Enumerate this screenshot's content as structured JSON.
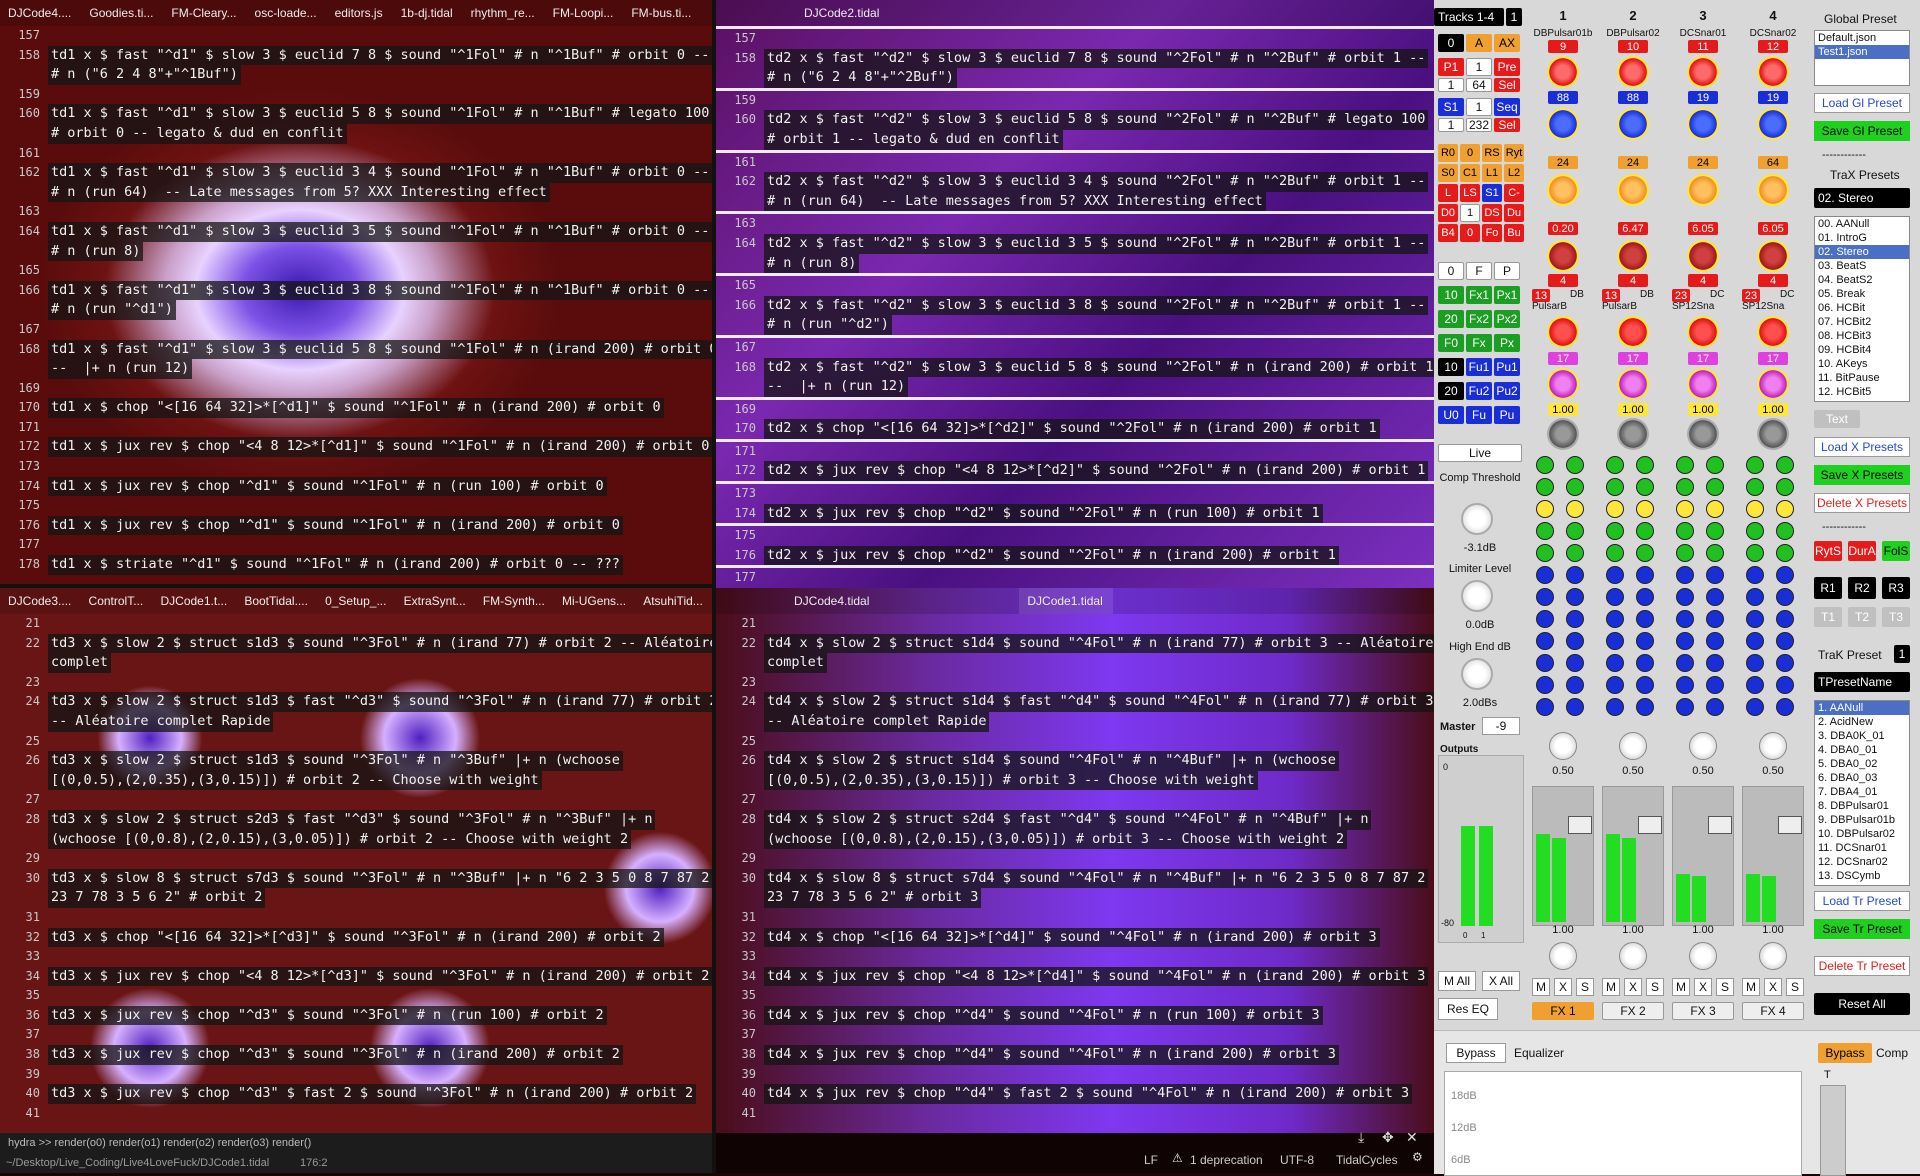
{
  "tl": {
    "tabs": [
      "DJCode4....",
      "Goodies.ti...",
      "FM-Cleary...",
      "osc-loade...",
      "editors.js",
      "1b-dj.tidal",
      "rhythm_re...",
      "FM-Loopi...",
      "FM-bus.ti..."
    ],
    "lines": [
      {
        "n": "157",
        "t": ""
      },
      {
        "n": "158",
        "t": "td1 x $ fast \"^d1\" $ slow 3 $ euclid 7 8 $ sound \"^1Fol\" # n \"^1Buf\" # orbit 0 --"
      },
      {
        "n": "",
        "t": "# n (\"6 2 4 8\"+\"^1Buf\")"
      },
      {
        "n": "159",
        "t": ""
      },
      {
        "n": "160",
        "t": "td1 x $ fast \"^d1\" $ slow 3 $ euclid 5 8 $ sound \"^1Fol\" # n \"^1Buf\" # legato 100"
      },
      {
        "n": "",
        "t": "# orbit 0 -- legato & dud en conflit"
      },
      {
        "n": "161",
        "t": ""
      },
      {
        "n": "162",
        "t": "td1 x $ fast \"^d1\" $ slow 3 $ euclid 3 4 $ sound \"^1Fol\" # n \"^1Buf\" # orbit 0 --"
      },
      {
        "n": "",
        "t": "# n (run 64)  -- Late messages from 5? XXX Interesting effect"
      },
      {
        "n": "163",
        "t": ""
      },
      {
        "n": "164",
        "t": "td1 x $ fast \"^d1\" $ slow 3 $ euclid 3 5 $ sound \"^1Fol\" # n \"^1Buf\" # orbit 0 --"
      },
      {
        "n": "",
        "t": "# n (run 8)"
      },
      {
        "n": "165",
        "t": ""
      },
      {
        "n": "166",
        "t": "td1 x $ fast \"^d1\" $ slow 3 $ euclid 3 8 $ sound \"^1Fol\" # n \"^1Buf\" # orbit 0 --"
      },
      {
        "n": "",
        "t": "# n (run \"^d1\")"
      },
      {
        "n": "167",
        "t": ""
      },
      {
        "n": "168",
        "t": "td1 x $ fast \"^d1\" $ slow 3 $ euclid 5 8 $ sound \"^1Fol\" # n (irand 200) # orbit 0"
      },
      {
        "n": "",
        "t": "--  |+ n (run 12)"
      },
      {
        "n": "169",
        "t": ""
      },
      {
        "n": "170",
        "t": "td1 x $ chop \"<[16 64 32]>*[^d1]\" $ sound \"^1Fol\" # n (irand 200) # orbit 0"
      },
      {
        "n": "171",
        "t": ""
      },
      {
        "n": "172",
        "t": "td1 x $ jux rev $ chop \"<4 8 12>*[^d1]\" $ sound \"^1Fol\" # n (irand 200) # orbit 0"
      },
      {
        "n": "173",
        "t": ""
      },
      {
        "n": "174",
        "t": "td1 x $ jux rev $ chop \"^d1\" $ sound \"^1Fol\" # n (run 100) # orbit 0"
      },
      {
        "n": "175",
        "t": ""
      },
      {
        "n": "176",
        "t": "td1 x $ jux rev $ chop \"^d1\" $ sound \"^1Fol\" # n (irand 200) # orbit 0"
      },
      {
        "n": "177",
        "t": ""
      },
      {
        "n": "178",
        "t": "td1 x $ striate \"^d1\" $ sound \"^1Fol\" # n (irand 200) # orbit 0 -- ???"
      }
    ]
  },
  "tr": {
    "tabs": [
      "DJCode2.tidal"
    ],
    "lines": [
      {
        "n": "157",
        "t": ""
      },
      {
        "n": "158",
        "t": "td2 x $ fast \"^d2\" $ slow 3 $ euclid 7 8 $ sound \"^2Fol\" # n \"^2Buf\" # orbit 1 --"
      },
      {
        "n": "",
        "t": "# n (\"6 2 4 8\"+\"^2Buf\")"
      },
      {
        "n": "159",
        "t": ""
      },
      {
        "n": "160",
        "t": "td2 x $ fast \"^d2\" $ slow 3 $ euclid 5 8 $ sound \"^2Fol\" # n \"^2Buf\" # legato 100"
      },
      {
        "n": "",
        "t": "# orbit 1 -- legato & dud en conflit"
      },
      {
        "n": "161",
        "t": ""
      },
      {
        "n": "162",
        "t": "td2 x $ fast \"^d2\" $ slow 3 $ euclid 3 4 $ sound \"^2Fol\" # n \"^2Buf\" # orbit 1 --"
      },
      {
        "n": "",
        "t": "# n (run 64)  -- Late messages from 5? XXX Interesting effect"
      },
      {
        "n": "163",
        "t": ""
      },
      {
        "n": "164",
        "t": "td2 x $ fast \"^d2\" $ slow 3 $ euclid 3 5 $ sound \"^2Fol\" # n \"^2Buf\" # orbit 1 --"
      },
      {
        "n": "",
        "t": "# n (run 8)"
      },
      {
        "n": "165",
        "t": ""
      },
      {
        "n": "166",
        "t": "td2 x $ fast \"^d2\" $ slow 3 $ euclid 3 8 $ sound \"^2Fol\" # n \"^2Buf\" # orbit 1 --"
      },
      {
        "n": "",
        "t": "# n (run \"^d2\")"
      },
      {
        "n": "167",
        "t": ""
      },
      {
        "n": "168",
        "t": "td2 x $ fast \"^d2\" $ slow 3 $ euclid 5 8 $ sound \"^2Fol\" # n (irand 200) # orbit 1"
      },
      {
        "n": "",
        "t": "--  |+ n (run 12)"
      },
      {
        "n": "169",
        "t": ""
      },
      {
        "n": "170",
        "t": "td2 x $ chop \"<[16 64 32]>*[^d2]\" $ sound \"^2Fol\" # n (irand 200) # orbit 1"
      },
      {
        "n": "171",
        "t": ""
      },
      {
        "n": "172",
        "t": "td2 x $ jux rev $ chop \"<4 8 12>*[^d2]\" $ sound \"^2Fol\" # n (irand 200) # orbit 1"
      },
      {
        "n": "173",
        "t": ""
      },
      {
        "n": "174",
        "t": "td2 x $ jux rev $ chop \"^d2\" $ sound \"^2Fol\" # n (run 100) # orbit 1"
      },
      {
        "n": "175",
        "t": ""
      },
      {
        "n": "176",
        "t": "td2 x $ jux rev $ chop \"^d2\" $ sound \"^2Fol\" # n (irand 200) # orbit 1"
      },
      {
        "n": "177",
        "t": ""
      },
      {
        "n": "178",
        "t": "td2 x $ striate \"^d2\" $ sound \"^2Fol\" # n (irand 200) # orbit 1 -- ???"
      }
    ]
  },
  "bl": {
    "tabs": [
      "DJCode3....",
      "ControlT...",
      "DJCode1.t...",
      "BootTidal....",
      "0_Setup_...",
      "ExtraSynt...",
      "FM-Synth...",
      "Mi-UGens...",
      "AtsuhiTid..."
    ],
    "lines": [
      {
        "n": "21",
        "t": ""
      },
      {
        "n": "22",
        "t": "td3 x $ slow 2 $ struct s1d3 $ sound \"^3Fol\" # n (irand 77) # orbit 2 -- Aléatoire"
      },
      {
        "n": "",
        "t": "complet"
      },
      {
        "n": "23",
        "t": ""
      },
      {
        "n": "24",
        "t": "td3 x $ slow 2 $ struct s1d3 $ fast \"^d3\" $ sound \"^3Fol\" # n (irand 77) # orbit 2"
      },
      {
        "n": "",
        "t": "-- Aléatoire complet Rapide"
      },
      {
        "n": "25",
        "t": ""
      },
      {
        "n": "26",
        "t": "td3 x $ slow 2 $ struct s1d3 $ sound \"^3Fol\" # n \"^3Buf\" |+ n (wchoose"
      },
      {
        "n": "",
        "t": "[(0,0.5),(2,0.35),(3,0.15)]) # orbit 2 -- Choose with weight"
      },
      {
        "n": "27",
        "t": ""
      },
      {
        "n": "28",
        "t": "td3 x $ slow 2 $ struct s2d3 $ fast \"^d3\" $ sound \"^3Fol\" # n \"^3Buf\" |+ n"
      },
      {
        "n": "",
        "t": "(wchoose [(0,0.8),(2,0.15),(3,0.05)]) # orbit 2 -- Choose with weight 2"
      },
      {
        "n": "29",
        "t": ""
      },
      {
        "n": "30",
        "t": "td3 x $ slow 8 $ struct s7d3 $ sound \"^3Fol\" # n \"^3Buf\" |+ n \"6 2 3 5 0 8 7 87 2"
      },
      {
        "n": "",
        "t": "23 7 78 3 5 6 2\" # orbit 2"
      },
      {
        "n": "31",
        "t": ""
      },
      {
        "n": "32",
        "t": "td3 x $ chop \"<[16 64 32]>*[^d3]\" $ sound \"^3Fol\" # n (irand 200) # orbit 2"
      },
      {
        "n": "33",
        "t": ""
      },
      {
        "n": "34",
        "t": "td3 x $ jux rev $ chop \"<4 8 12>*[^d3]\" $ sound \"^3Fol\" # n (irand 200) # orbit 2"
      },
      {
        "n": "35",
        "t": ""
      },
      {
        "n": "36",
        "t": "td3 x $ jux rev $ chop \"^d3\" $ sound \"^3Fol\" # n (run 100) # orbit 2"
      },
      {
        "n": "37",
        "t": ""
      },
      {
        "n": "38",
        "t": "td3 x $ jux rev $ chop \"^d3\" $ sound \"^3Fol\" # n (irand 200) # orbit 2"
      },
      {
        "n": "39",
        "t": ""
      },
      {
        "n": "40",
        "t": "td3 x $ jux rev $ chop \"^d3\" $ fast 2 $ sound \"^3Fol\" # n (irand 200) # orbit 2"
      },
      {
        "n": "41",
        "t": ""
      }
    ],
    "hydra": "hydra >>  render(o0) render(o1) render(o2) render(o3) render()",
    "path": "~/Desktop/Live_Coding/Live4LoveFuck/DJCode1.tidal",
    "cursor": "176:2"
  },
  "br": {
    "tabs": [
      "DJCode4.tidal",
      "DJCode1.tidal"
    ],
    "lines": [
      {
        "n": "21",
        "t": ""
      },
      {
        "n": "22",
        "t": "td4 x $ slow 2 $ struct s1d4 $ sound \"^4Fol\" # n (irand 77) # orbit 3 -- Aléatoire"
      },
      {
        "n": "",
        "t": "complet"
      },
      {
        "n": "23",
        "t": ""
      },
      {
        "n": "24",
        "t": "td4 x $ slow 2 $ struct s1d4 $ fast \"^d4\" $ sound \"^4Fol\" # n (irand 77) # orbit 3"
      },
      {
        "n": "",
        "t": "-- Aléatoire complet Rapide"
      },
      {
        "n": "25",
        "t": ""
      },
      {
        "n": "26",
        "t": "td4 x $ slow 2 $ struct s1d4 $ sound \"^4Fol\" # n \"^4Buf\" |+ n (wchoose"
      },
      {
        "n": "",
        "t": "[(0,0.5),(2,0.35),(3,0.15)]) # orbit 3 -- Choose with weight"
      },
      {
        "n": "27",
        "t": ""
      },
      {
        "n": "28",
        "t": "td4 x $ slow 2 $ struct s2d4 $ fast \"^d4\" $ sound \"^4Fol\" # n \"^4Buf\" |+ n"
      },
      {
        "n": "",
        "t": "(wchoose [(0,0.8),(2,0.15),(3,0.05)]) # orbit 3 -- Choose with weight 2"
      },
      {
        "n": "29",
        "t": ""
      },
      {
        "n": "30",
        "t": "td4 x $ slow 8 $ struct s7d4 $ sound \"^4Fol\" # n \"^4Buf\" |+ n \"6 2 3 5 0 8 7 87 2"
      },
      {
        "n": "",
        "t": "23 7 78 3 5 6 2\" # orbit 3"
      },
      {
        "n": "31",
        "t": ""
      },
      {
        "n": "32",
        "t": "td4 x $ chop \"<[16 64 32]>*[^d4]\" $ sound \"^4Fol\" # n (irand 200) # orbit 3"
      },
      {
        "n": "33",
        "t": ""
      },
      {
        "n": "34",
        "t": "td4 x $ jux rev $ chop \"<4 8 12>*[^d4]\" $ sound \"^4Fol\" # n (irand 200) # orbit 3"
      },
      {
        "n": "35",
        "t": ""
      },
      {
        "n": "36",
        "t": "td4 x $ jux rev $ chop \"^d4\" $ sound \"^4Fol\" # n (run 100) # orbit 3"
      },
      {
        "n": "37",
        "t": ""
      },
      {
        "n": "38",
        "t": "td4 x $ jux rev $ chop \"^d4\" $ sound \"^4Fol\" # n (irand 200) # orbit 3"
      },
      {
        "n": "39",
        "t": ""
      },
      {
        "n": "40",
        "t": "td4 x $ jux rev $ chop \"^d4\" $ fast 2 $ sound \"^4Fol\" # n (irand 200) # orbit 3"
      },
      {
        "n": "41",
        "t": ""
      }
    ],
    "status": {
      "lf": "LF",
      "deprecation": "1 deprecation",
      "encoding": "UTF-8",
      "grammar": "TidalCycles"
    }
  },
  "panel": {
    "tracks_label": "Tracks 1-4",
    "tracks_num": "1",
    "left_buttons": [
      [
        "0",
        "A",
        "AX"
      ],
      [
        "P1",
        "1",
        "Pre"
      ],
      [
        "1",
        "64",
        "Sel"
      ],
      [
        "S1",
        "1",
        "Seq"
      ],
      [
        "1",
        "232",
        "Sel"
      ],
      [
        "R0",
        "0",
        "RS",
        "Ryt"
      ],
      [
        "S0",
        "C1",
        "L1",
        "L2"
      ],
      [
        "L",
        "LS",
        "S1",
        "C-"
      ],
      [
        "D0",
        "1",
        "DS",
        "Du"
      ],
      [
        "B4",
        "0",
        "Fo",
        "Bu"
      ],
      [
        "0",
        "F",
        "P"
      ],
      [
        "10",
        "Fx1",
        "Px1"
      ],
      [
        "20",
        "Fx2",
        "Px2"
      ],
      [
        "F0",
        "Fx",
        "Px"
      ],
      [
        "10",
        "Fu1",
        "Pu1"
      ],
      [
        "20",
        "Fu2",
        "Pu2"
      ],
      [
        "U0",
        "Fu",
        "Pu"
      ]
    ],
    "live": "Live",
    "comp_label": "Comp Threshold",
    "comp_val": "-3.1dB",
    "limit_label": "Limiter Level",
    "limit_val": "0.0dB",
    "high_label": "High End dB",
    "high_val": "2.0dBs",
    "master_label": "Master",
    "master_val": "-9",
    "outputs_label": "Outputs",
    "out_top": "0",
    "out_bottom": "-80",
    "out_ch": [
      "0",
      "1"
    ],
    "m_all": "M All",
    "x_all": "X All",
    "res_eq": "Res EQ",
    "channels": [
      {
        "num": "1",
        "name": "DBPulsar01b",
        "r1": "9",
        "v1": "88",
        "v2": "24",
        "v3": "0.20",
        "v4": "4",
        "code": "13",
        "type": "DB",
        "inst": "PulsarB",
        "v5": "17",
        "v6": "1.00",
        "pan": "0.50",
        "gain": "1.00",
        "fx": "FX 1"
      },
      {
        "num": "2",
        "name": "DBPulsar02",
        "r1": "10",
        "v1": "88",
        "v2": "24",
        "v3": "6.47",
        "v4": "4",
        "code": "13",
        "type": "DB",
        "inst": "PulsarB",
        "v5": "17",
        "v6": "1.00",
        "pan": "0.50",
        "gain": "1.00",
        "fx": "FX 2"
      },
      {
        "num": "3",
        "name": "DCSnar01",
        "r1": "11",
        "v1": "19",
        "v2": "24",
        "v3": "6.05",
        "v4": "4",
        "code": "23",
        "type": "DC",
        "inst": "SP12Sna",
        "v5": "17",
        "v6": "1.00",
        "pan": "0.50",
        "gain": "1.00",
        "fx": "FX 3"
      },
      {
        "num": "4",
        "name": "DCSnar02",
        "r1": "12",
        "v1": "19",
        "v2": "64",
        "v3": "6.05",
        "v4": "4",
        "code": "23",
        "type": "DC",
        "inst": "SP12Sna",
        "v5": "17",
        "v6": "1.00",
        "pan": "0.50",
        "gain": "1.00",
        "fx": "FX 4"
      }
    ],
    "mxs": [
      "M",
      "X",
      "S"
    ],
    "global_preset": "Global Preset",
    "global_list": [
      "Default.json",
      "Test1.json"
    ],
    "load_gl": "Load Gl Preset",
    "save_gl": "Save Gl Preset",
    "sep": "------------",
    "trax_presets": "TraX Presets",
    "trax_current": "02. Stereo",
    "trax_list": [
      "00. AANull",
      "01. IntroG",
      "02. Stereo",
      "03. BeatS",
      "04. BeatS2",
      "05. Break",
      "06. HCBit",
      "07. HCBit2",
      "08. HCBit3",
      "09. HCBit4",
      "10. AKeys",
      "11. BitPause",
      "12. HCBit5"
    ],
    "text_btn": "Text",
    "load_x": "Load X Presets",
    "save_x": "Save X Presets",
    "delete_x": "Delete X Presets",
    "sep2": "------------",
    "rs_btns": [
      "RytS",
      "DurA",
      "FolS"
    ],
    "r_btns": [
      "R1",
      "R2",
      "R3"
    ],
    "t_btns": [
      "T1",
      "T2",
      "T3"
    ],
    "trak_preset": "TraK Preset",
    "trak_num": "1",
    "trak_name": "TPresetName",
    "trak_list": [
      "1. AANull",
      "2. AcidNew",
      "3. DBA0K_01",
      "4. DBA0_01",
      "5. DBA0_02",
      "6. DBA0_03",
      "7. DBA4_01",
      "8. DBPulsar01",
      "9. DBPulsar01b",
      "10. DBPulsar02",
      "11. DCSnar01",
      "12. DCSnar02",
      "13. DSCymb"
    ],
    "load_tr": "Load Tr Preset",
    "save_tr": "Save Tr Preset",
    "delete_tr": "Delete Tr Preset",
    "reset_all": "Reset All",
    "bypass": "Bypass",
    "equalizer": "Equalizer",
    "eq_db": [
      "18dB",
      "12dB",
      "6dB"
    ],
    "bypass2": "Bypass",
    "comp_short": "Comp",
    "t_label": "T"
  }
}
